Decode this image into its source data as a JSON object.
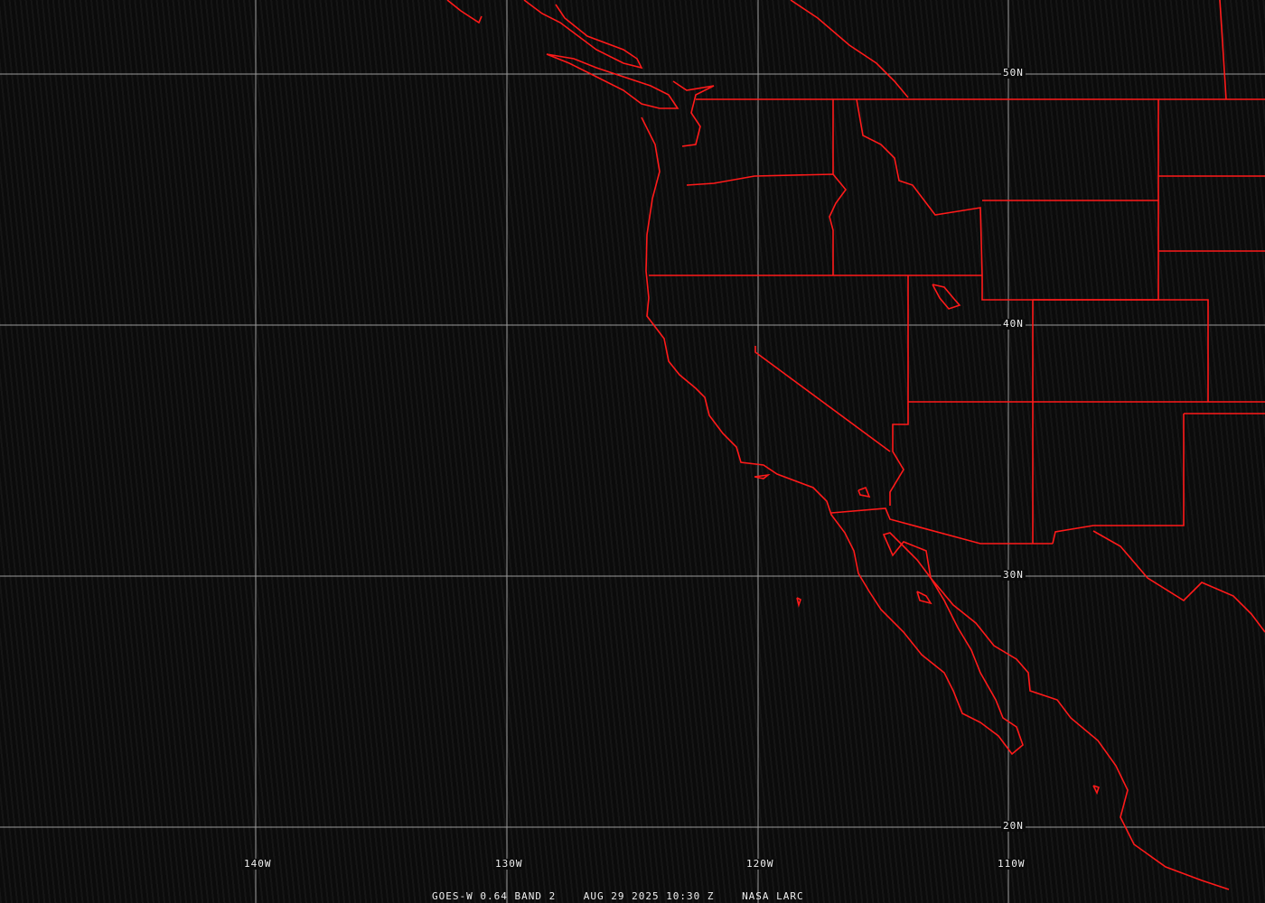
{
  "map": {
    "grid_color": "#9a9a9a",
    "boundary_color": "#ff1a1a",
    "lat_labels": [
      "50N",
      "40N",
      "30N",
      "20N"
    ],
    "lon_labels": [
      "140W",
      "130W",
      "120W",
      "110W"
    ]
  },
  "caption": {
    "satellite": "GOES-W 0.64 BAND 2",
    "datetime": "AUG 29 2025 10:30 Z",
    "source": "NASA LARC"
  }
}
